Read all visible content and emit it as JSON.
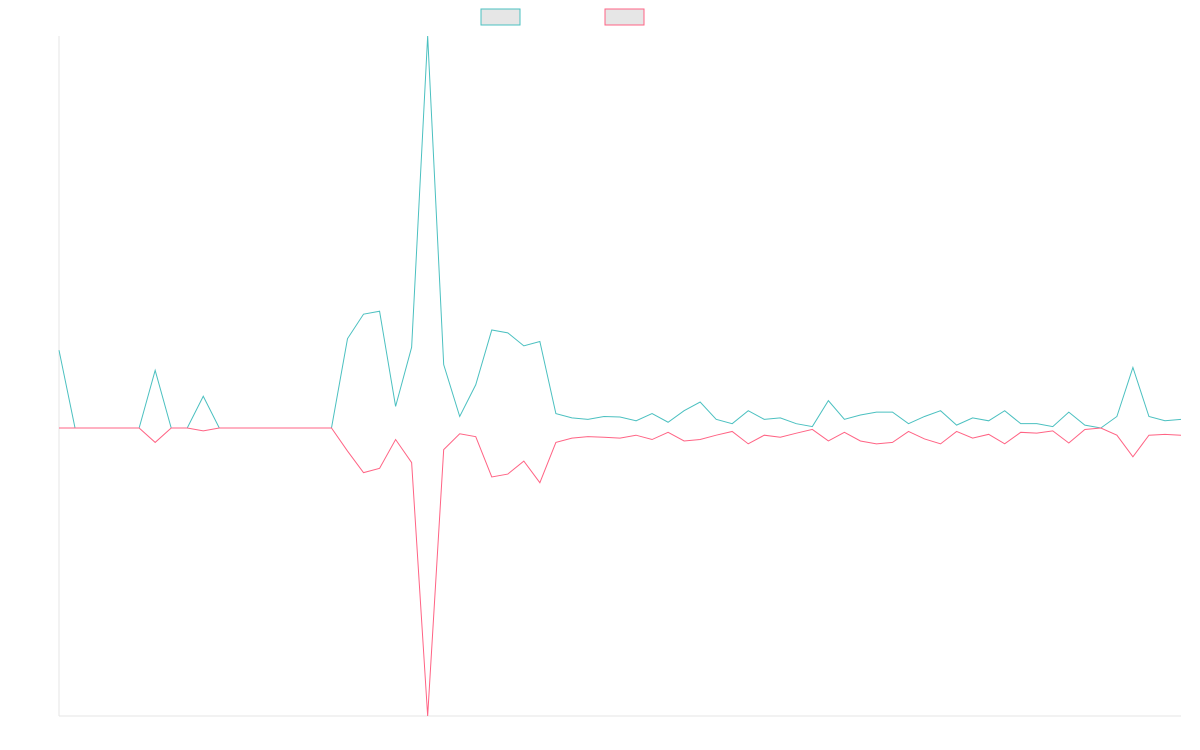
{
  "chart_data": {
    "type": "line",
    "title": "",
    "xlabel": "",
    "ylabel": "",
    "ylim": [
      -1,
      1
    ],
    "grid": false,
    "legend_position": "top-center",
    "series": [
      {
        "color": "#4bc0c0",
        "values": [
          0.27,
          0,
          0,
          0,
          0,
          0,
          0.2,
          0,
          0,
          0.11,
          0,
          0,
          0,
          0,
          0,
          0,
          0,
          0,
          0.31,
          0.395,
          0.405,
          0.075,
          0.28,
          1.36,
          0.22,
          0.04,
          0.15,
          0.34,
          0.33,
          0.285,
          0.3,
          0.05,
          0.035,
          0.03,
          0.04,
          0.038,
          0.025,
          0.05,
          0.02,
          0.06,
          0.09,
          0.03,
          0.015,
          0.06,
          0.03,
          0.035,
          0.015,
          0.005,
          0.095,
          0.03,
          0.045,
          0.055,
          0.055,
          0.015,
          0.04,
          0.06,
          0.01,
          0.035,
          0.025,
          0.06,
          0.015,
          0.015,
          0.005,
          0.055,
          0.01,
          0,
          0.04,
          0.21,
          0.04,
          0.025,
          0.03
        ]
      },
      {
        "color": "#ff6384",
        "values": [
          0,
          0,
          0,
          0,
          0,
          0,
          -0.05,
          0,
          0,
          -0.01,
          0,
          0,
          0,
          0,
          0,
          0,
          0,
          0,
          -0.08,
          -0.155,
          -0.14,
          -0.04,
          -0.12,
          -1.0,
          -0.075,
          -0.02,
          -0.03,
          -0.17,
          -0.16,
          -0.115,
          -0.19,
          -0.05,
          -0.035,
          -0.03,
          -0.032,
          -0.035,
          -0.025,
          -0.04,
          -0.015,
          -0.045,
          -0.04,
          -0.025,
          -0.012,
          -0.055,
          -0.025,
          -0.032,
          -0.018,
          -0.005,
          -0.045,
          -0.015,
          -0.045,
          -0.055,
          -0.05,
          -0.012,
          -0.038,
          -0.055,
          -0.012,
          -0.035,
          -0.022,
          -0.055,
          -0.015,
          -0.018,
          -0.01,
          -0.052,
          -0.005,
          0,
          -0.025,
          -0.1,
          -0.025,
          -0.022,
          -0.025
        ]
      }
    ]
  }
}
